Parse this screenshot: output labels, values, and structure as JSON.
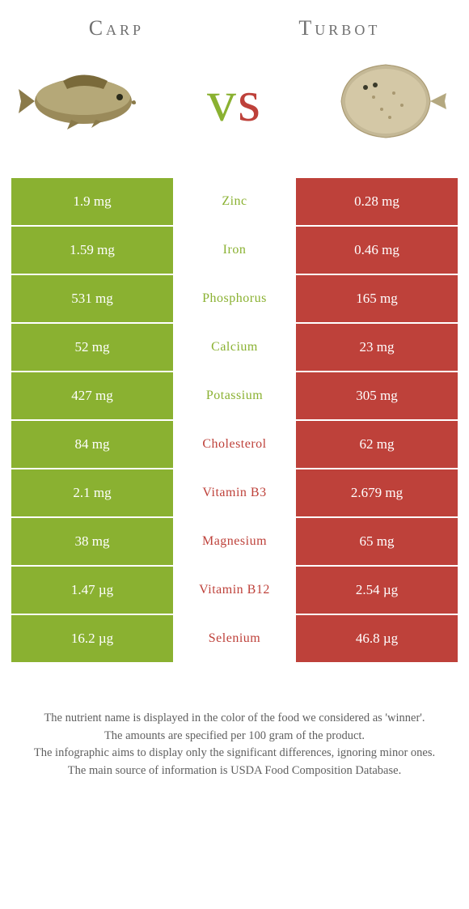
{
  "colors": {
    "carp_green": "#8ab131",
    "turbot_red": "#be413a",
    "white": "#ffffff",
    "text_gray": "#707070"
  },
  "header": {
    "left_title": "Carp",
    "right_title": "Turbot",
    "vs_text": "vs"
  },
  "rows": [
    {
      "left": "1.9 mg",
      "label": "Zinc",
      "right": "0.28 mg",
      "winner": "left"
    },
    {
      "left": "1.59 mg",
      "label": "Iron",
      "right": "0.46 mg",
      "winner": "left"
    },
    {
      "left": "531 mg",
      "label": "Phosphorus",
      "right": "165 mg",
      "winner": "left"
    },
    {
      "left": "52 mg",
      "label": "Calcium",
      "right": "23 mg",
      "winner": "left"
    },
    {
      "left": "427 mg",
      "label": "Potassium",
      "right": "305 mg",
      "winner": "left"
    },
    {
      "left": "84 mg",
      "label": "Cholesterol",
      "right": "62 mg",
      "winner": "right"
    },
    {
      "left": "2.1 mg",
      "label": "Vitamin B3",
      "right": "2.679 mg",
      "winner": "right"
    },
    {
      "left": "38 mg",
      "label": "Magnesium",
      "right": "65 mg",
      "winner": "right"
    },
    {
      "left": "1.47 µg",
      "label": "Vitamin B12",
      "right": "2.54 µg",
      "winner": "right"
    },
    {
      "left": "16.2 µg",
      "label": "Selenium",
      "right": "46.8 µg",
      "winner": "right"
    }
  ],
  "footer": {
    "line1": "The nutrient name is displayed in the color of the food we considered as 'winner'.",
    "line2": "The amounts are specified per 100 gram of the product.",
    "line3": "The infographic aims to display only the significant differences, ignoring minor ones.",
    "line4": "The main source of information is USDA Food Composition Database."
  }
}
